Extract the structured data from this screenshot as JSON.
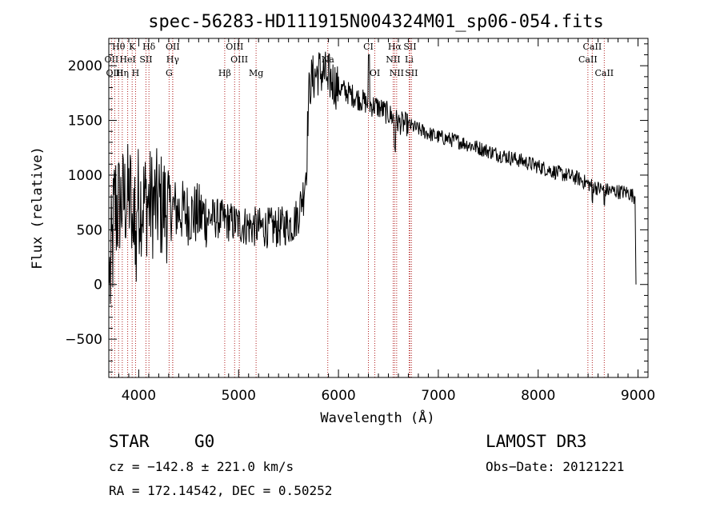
{
  "chart_data": {
    "type": "line",
    "title": "spec-56283-HD111915N004324M01_sp06-054.fits",
    "xlabel": "Wavelength (Å)",
    "ylabel": "Flux (relative)",
    "xlim": [
      3700,
      9100
    ],
    "ylim": [
      -850,
      2250
    ],
    "xticks": [
      4000,
      5000,
      6000,
      7000,
      8000,
      9000
    ],
    "yticks": [
      -500,
      0,
      500,
      1000,
      1500,
      2000
    ],
    "line_color": "#000000",
    "marker_color": "#b22222",
    "series": [
      {
        "name": "spectrum",
        "anchors_x": [
          3700,
          3720,
          3760,
          3900,
          4100,
          4300,
          4500,
          4800,
          5000,
          5200,
          5400,
          5550,
          5600,
          5650,
          5680,
          5700,
          5720,
          5800,
          5900,
          6000,
          6100,
          6200,
          6300,
          6400,
          6500,
          6560,
          6600,
          6700,
          6800,
          6900,
          7000,
          7200,
          7400,
          7600,
          7800,
          8000,
          8200,
          8400,
          8500,
          8550,
          8600,
          8700,
          8800,
          8900,
          8970,
          8980
        ],
        "anchors_y": [
          0,
          100,
          700,
          800,
          750,
          700,
          650,
          600,
          550,
          520,
          520,
          560,
          650,
          850,
          1100,
          1700,
          1850,
          1950,
          1900,
          1800,
          1750,
          1700,
          1650,
          1620,
          1560,
          1520,
          1480,
          1460,
          1420,
          1380,
          1350,
          1310,
          1250,
          1190,
          1140,
          1080,
          1020,
          970,
          920,
          900,
          880,
          860,
          850,
          840,
          800,
          0
        ]
      }
    ],
    "lines": [
      {
        "name": "Hθ",
        "wavelength": 3798,
        "row": 0
      },
      {
        "name": "K",
        "wavelength": 3934,
        "row": 0
      },
      {
        "name": "Hδ",
        "wavelength": 4102,
        "row": 0
      },
      {
        "name": "OII",
        "wavelength": 4340,
        "row": 0
      },
      {
        "name": "OIII",
        "wavelength": 4960,
        "row": 0
      },
      {
        "name": "CI",
        "wavelength": 6300,
        "row": 0
      },
      {
        "name": "Hα",
        "wavelength": 6563,
        "row": 0
      },
      {
        "name": "SII",
        "wavelength": 6716,
        "row": 0
      },
      {
        "name": "CaII",
        "wavelength": 8542,
        "row": 0
      },
      {
        "name": "OII",
        "wavelength": 3727,
        "row": 1
      },
      {
        "name": "HeI",
        "wavelength": 3889,
        "row": 1
      },
      {
        "name": "SII",
        "wavelength": 4072,
        "row": 1
      },
      {
        "name": "Hγ",
        "wavelength": 4340,
        "row": 1
      },
      {
        "name": "OIII",
        "wavelength": 5007,
        "row": 1
      },
      {
        "name": "Na",
        "wavelength": 5893,
        "row": 1
      },
      {
        "name": "NII",
        "wavelength": 6548,
        "row": 1
      },
      {
        "name": "Li",
        "wavelength": 6708,
        "row": 1
      },
      {
        "name": "CaII",
        "wavelength": 8498,
        "row": 1
      },
      {
        "name": "OIII",
        "wavelength": 3760,
        "row": 2
      },
      {
        "name": "Hη",
        "wavelength": 3835,
        "row": 2
      },
      {
        "name": "H",
        "wavelength": 3968,
        "row": 2
      },
      {
        "name": "G",
        "wavelength": 4304,
        "row": 2
      },
      {
        "name": "Hβ",
        "wavelength": 4861,
        "row": 2
      },
      {
        "name": "Mg",
        "wavelength": 5175,
        "row": 2
      },
      {
        "name": "OI",
        "wavelength": 6364,
        "row": 2
      },
      {
        "name": "NII",
        "wavelength": 6583,
        "row": 2
      },
      {
        "name": "SII",
        "wavelength": 6731,
        "row": 2
      },
      {
        "name": "CaII",
        "wavelength": 8662,
        "row": 2
      }
    ]
  },
  "info": {
    "class": "STAR",
    "subclass": "G0",
    "survey": "LAMOST DR3",
    "cz": "cz = −142.8 ± 221.0 km/s",
    "obs_date": "Obs−Date: 20121221",
    "radec": "RA = 172.14542, DEC =   0.50252"
  }
}
